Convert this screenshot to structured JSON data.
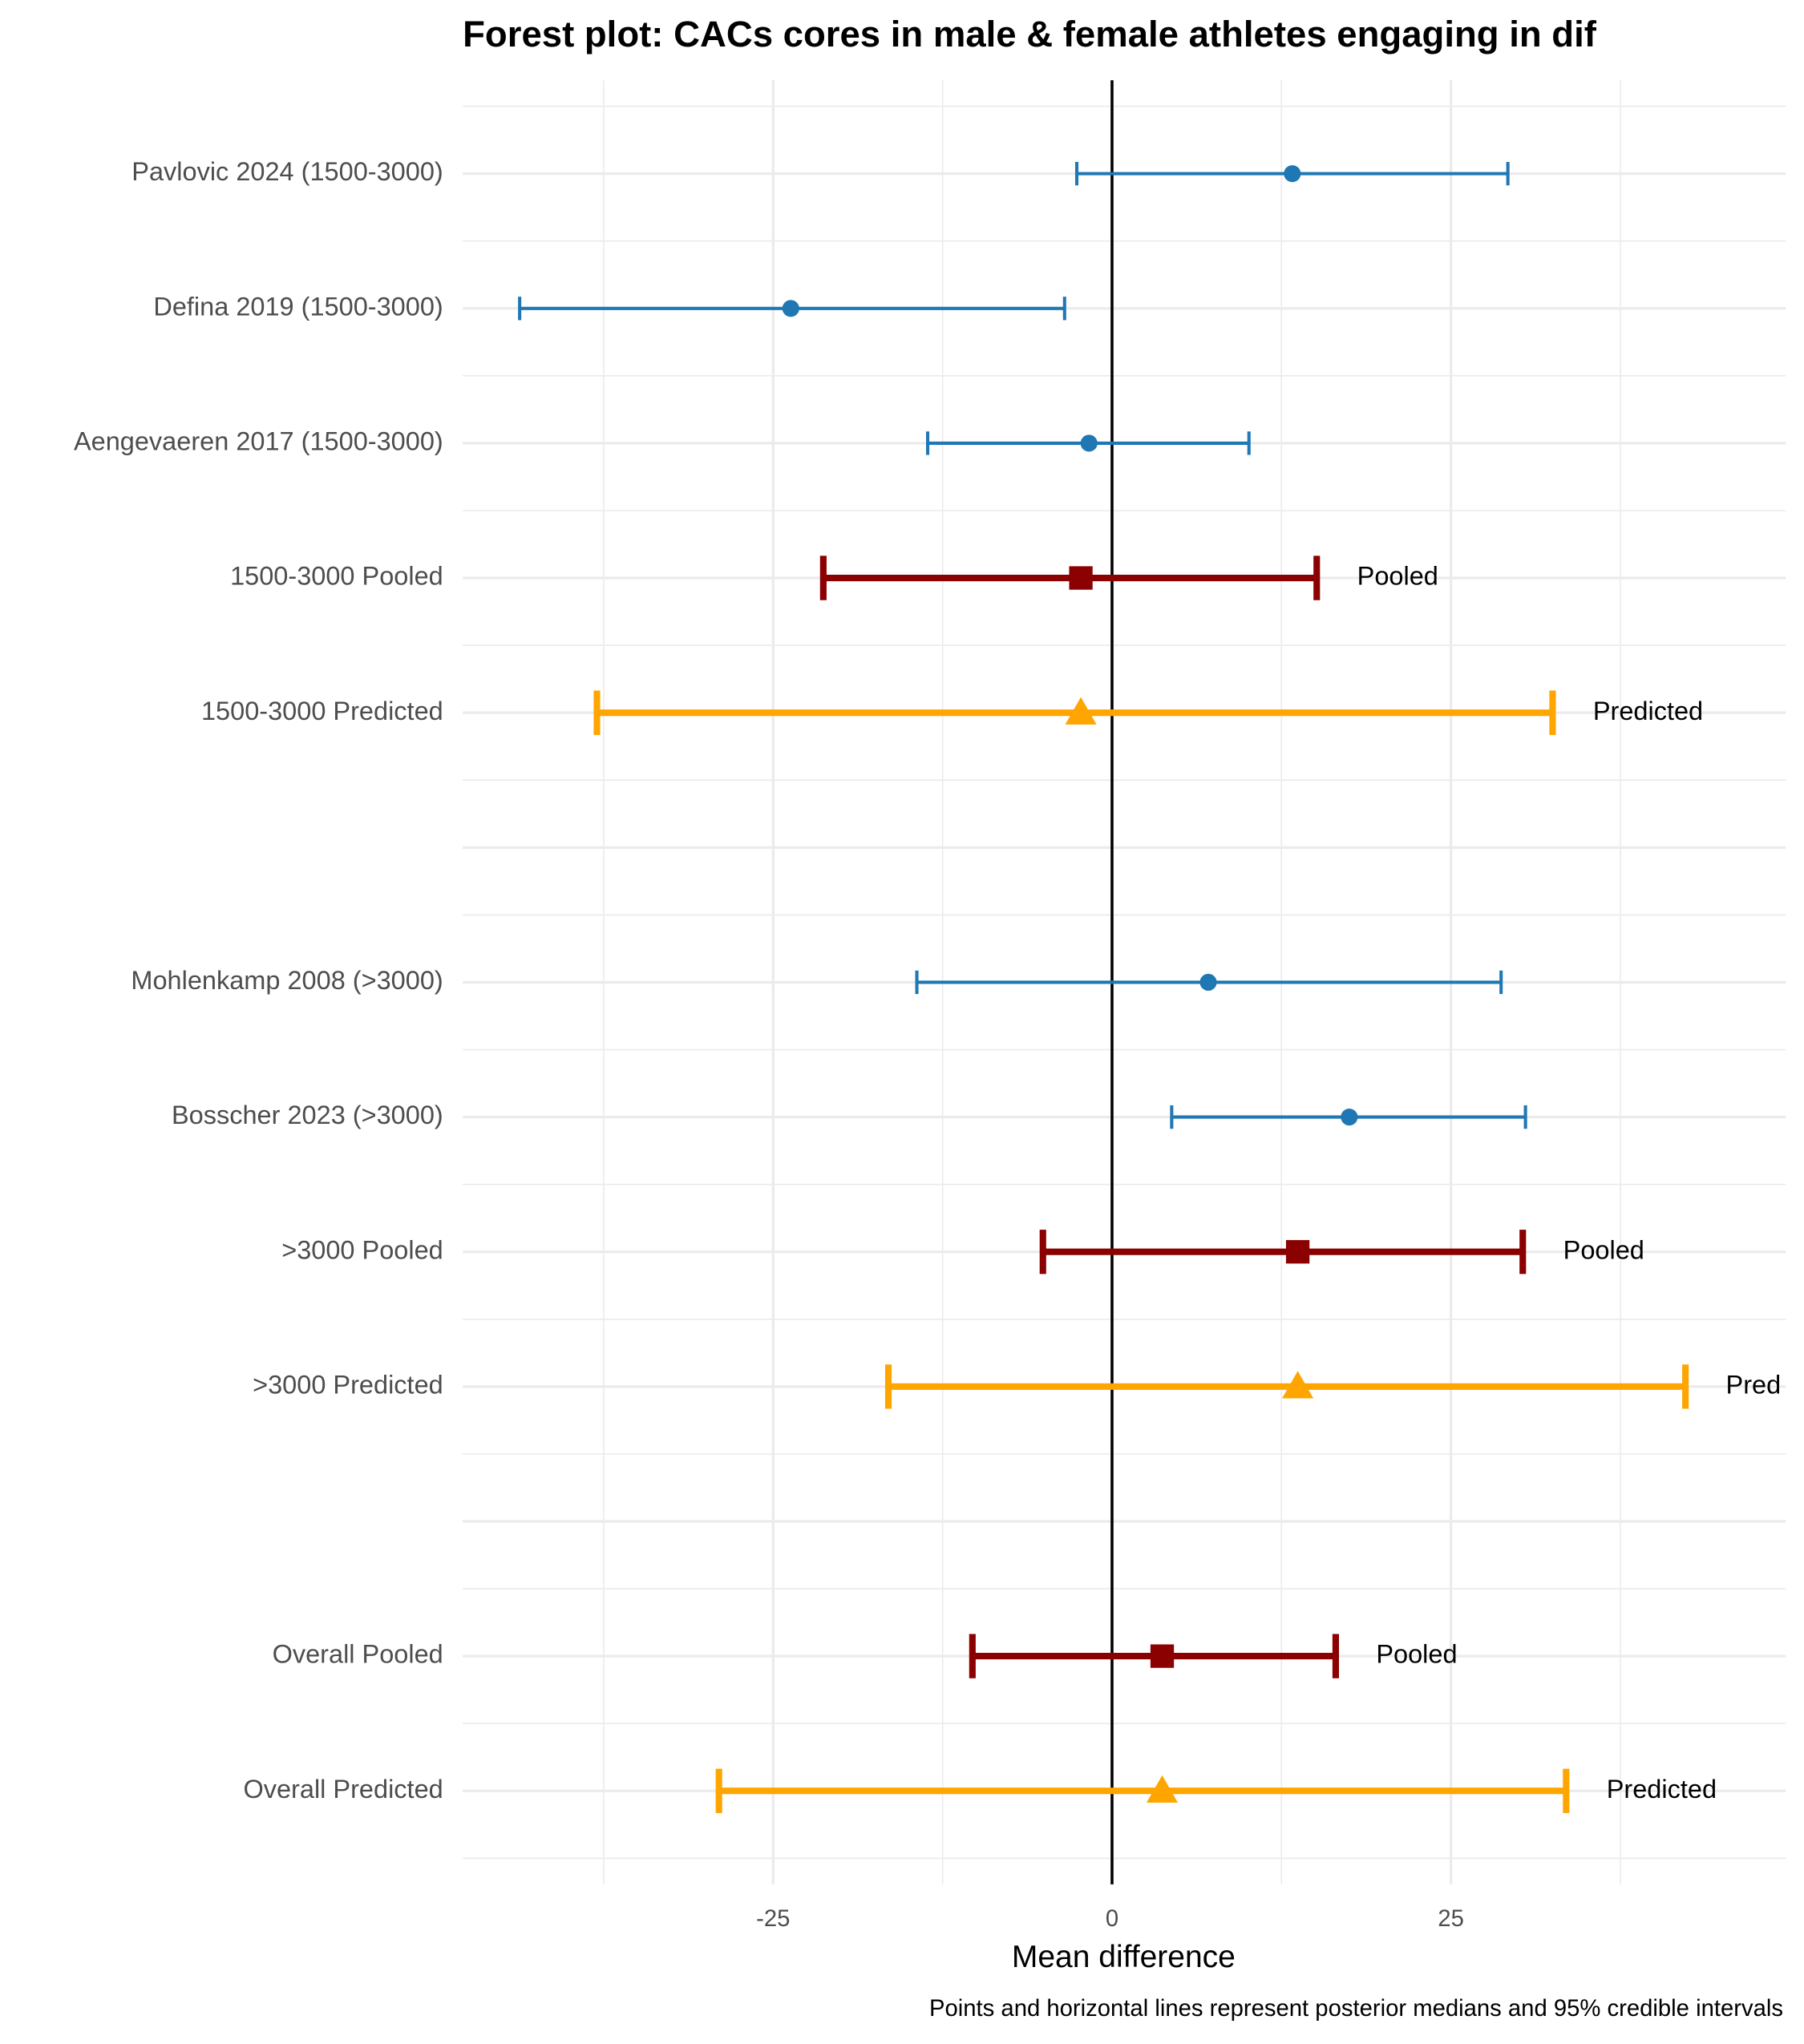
{
  "chart_data": {
    "type": "forest",
    "title": "Forest plot: CACs cores in male & female athletes engaging in dif",
    "xlabel": "Mean difference",
    "caption": "Points and horizontal lines represent posterior medians and 95% credible intervals",
    "categories": [
      "Pavlovic 2024 (1500-3000)",
      "Defina 2019 (1500-3000)",
      "Aengevaeren 2017 (1500-3000)",
      "1500-3000 Pooled",
      "1500-3000 Predicted",
      null,
      "Mohlenkamp 2008 (>3000)",
      "Bosscher 2023 (>3000)",
      ">3000 Pooled",
      ">3000 Predicted",
      null,
      "Overall Pooled",
      "Overall Predicted"
    ],
    "series": [
      {
        "color": "#1f77b4",
        "marker": "circle",
        "values": [
          13.3,
          -23.7,
          -1.7,
          null,
          null,
          null,
          7.1,
          17.5,
          null,
          null,
          null,
          null,
          null
        ],
        "lower": [
          -2.6,
          -43.7,
          -13.6,
          null,
          null,
          null,
          -14.4,
          4.4,
          null,
          null,
          null,
          null,
          null
        ],
        "upper": [
          29.2,
          -3.5,
          10.1,
          null,
          null,
          null,
          28.7,
          30.5,
          null,
          null,
          null,
          null,
          null
        ]
      },
      {
        "color": "#8b0000",
        "marker": "square",
        "values": [
          null,
          null,
          null,
          -2.3,
          null,
          null,
          null,
          null,
          13.7,
          null,
          null,
          3.7,
          null
        ],
        "lower": [
          null,
          null,
          null,
          -21.3,
          null,
          null,
          null,
          null,
          -5.1,
          null,
          null,
          -10.3,
          null
        ],
        "upper": [
          null,
          null,
          null,
          15.1,
          null,
          null,
          null,
          null,
          30.3,
          null,
          null,
          16.5,
          null
        ],
        "labels": [
          null,
          null,
          null,
          "Pooled",
          null,
          null,
          null,
          null,
          "Pooled",
          null,
          null,
          "Pooled",
          null
        ]
      },
      {
        "color": "#ffa500",
        "marker": "triangle",
        "values": [
          null,
          null,
          null,
          null,
          -2.3,
          null,
          null,
          null,
          null,
          13.7,
          null,
          null,
          3.7
        ],
        "lower": [
          null,
          null,
          null,
          null,
          -38.0,
          null,
          null,
          null,
          null,
          -16.5,
          null,
          null,
          -29.0
        ],
        "upper": [
          null,
          null,
          null,
          null,
          32.5,
          null,
          null,
          null,
          null,
          42.3,
          null,
          null,
          33.5
        ],
        "labels": [
          null,
          null,
          null,
          null,
          "Predicted",
          null,
          null,
          null,
          null,
          "Pred",
          null,
          null,
          "Predicted"
        ]
      }
    ],
    "xlim": [
      -47.9,
      49.7
    ],
    "xticks": [
      -25,
      0,
      25
    ],
    "xminor": [
      -37.5,
      -12.5,
      12.5,
      37.5
    ],
    "vline": 0,
    "grid": true
  }
}
